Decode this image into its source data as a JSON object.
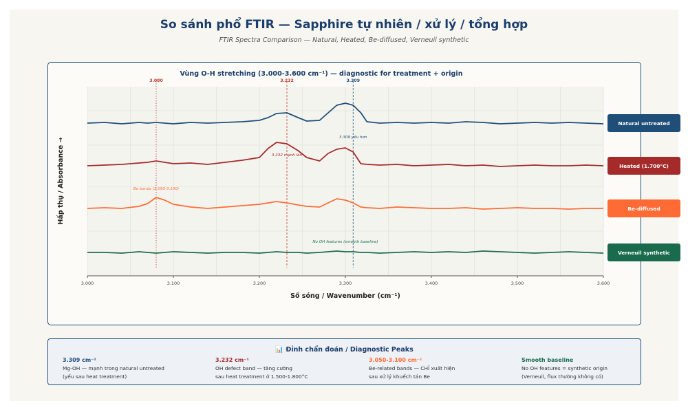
{
  "header": {
    "title": "So sánh phổ FTIR — Sapphire tự nhiên / xử lý / tổng hợp",
    "subtitle": "FTIR Spectra Comparison — Natural, Heated, Be-diffused, Verneuil synthetic"
  },
  "chart_data": {
    "type": "line",
    "title": "Vùng O-H stretching (3.000-3.600 cm⁻¹) — diagnostic for treatment + origin",
    "xlabel": "Số sóng / Wavenumber (cm⁻¹)",
    "ylabel": "Hấp thụ / Absorbance →",
    "xlim": [
      3000,
      3600
    ],
    "xticks": [
      3000,
      3100,
      3200,
      3300,
      3400,
      3500,
      3600
    ],
    "xtick_labels": [
      "3.000",
      "3.100",
      "3.200",
      "3.300",
      "3.400",
      "3.500",
      "3.600"
    ],
    "grid": true,
    "legend": "right",
    "reference_lines": [
      {
        "x": 3080,
        "label": "3.080",
        "color": "#c0392b",
        "style": "dotted"
      },
      {
        "x": 3232,
        "label": "3.232",
        "color": "#c0392b",
        "style": "dashed"
      },
      {
        "x": 3309,
        "label": "3.309",
        "color": "#1f4e79",
        "style": "dashed"
      }
    ],
    "x": [
      3000,
      3020,
      3040,
      3060,
      3070,
      3080,
      3090,
      3100,
      3120,
      3140,
      3160,
      3180,
      3200,
      3210,
      3220,
      3232,
      3245,
      3255,
      3270,
      3280,
      3290,
      3300,
      3309,
      3318,
      3325,
      3340,
      3360,
      3380,
      3400,
      3420,
      3440,
      3460,
      3480,
      3500,
      3520,
      3540,
      3560,
      3580,
      3600
    ],
    "series": [
      {
        "name": "Natural untreated",
        "color": "#1f4e79",
        "values": [
          0.0,
          0.01,
          -0.01,
          0.01,
          0.0,
          0.01,
          0.0,
          -0.01,
          0.01,
          0.0,
          0.01,
          0.02,
          0.04,
          0.08,
          0.14,
          0.15,
          0.08,
          0.03,
          0.04,
          0.15,
          0.26,
          0.29,
          0.26,
          0.15,
          0.02,
          0.0,
          0.01,
          0.0,
          0.01,
          0.0,
          0.02,
          0.01,
          -0.01,
          0.0,
          0.01,
          0.0,
          0.01,
          0.0,
          -0.01
        ]
      },
      {
        "name": "Heated (1.700°C)",
        "color": "#a52a2a",
        "values": [
          0.0,
          0.01,
          0.02,
          0.04,
          0.05,
          0.07,
          0.05,
          0.03,
          0.04,
          0.02,
          0.05,
          0.08,
          0.12,
          0.25,
          0.34,
          0.32,
          0.22,
          0.12,
          0.07,
          0.18,
          0.24,
          0.26,
          0.2,
          0.03,
          0.02,
          0.01,
          0.02,
          0.0,
          0.01,
          0.02,
          0.0,
          0.01,
          -0.01,
          0.0,
          0.01,
          0.0,
          0.0,
          0.01,
          0.0
        ]
      },
      {
        "name": "Be-diffused",
        "color": "#ff6b35",
        "values": [
          0.0,
          0.01,
          0.0,
          0.03,
          0.07,
          0.16,
          0.12,
          0.06,
          0.02,
          0.0,
          0.02,
          0.04,
          0.06,
          0.08,
          0.1,
          0.08,
          0.05,
          0.03,
          0.02,
          0.08,
          0.14,
          0.12,
          0.08,
          0.02,
          0.01,
          0.0,
          0.02,
          0.01,
          0.0,
          0.0,
          0.01,
          -0.01,
          0.0,
          0.01,
          0.0,
          0.0,
          -0.01,
          0.0,
          0.0
        ]
      },
      {
        "name": "Verneuil synthetic",
        "color": "#1a6b4e",
        "values": [
          0.0,
          0.0,
          -0.01,
          0.01,
          0.0,
          -0.01,
          0.0,
          0.01,
          0.0,
          -0.01,
          0.0,
          0.0,
          -0.01,
          0.0,
          0.01,
          0.0,
          0.0,
          -0.01,
          0.0,
          0.01,
          0.02,
          0.01,
          0.01,
          0.0,
          0.0,
          -0.01,
          0.0,
          0.01,
          0.0,
          0.01,
          0.0,
          0.02,
          0.01,
          0.0,
          -0.01,
          0.0,
          0.01,
          0.0,
          -0.01
        ]
      }
    ],
    "annotations": [
      {
        "series": 0,
        "x": 3309,
        "text": "3.309 yếu hơn"
      },
      {
        "series": 1,
        "x": 3232,
        "text": "3.232 mạnh lên"
      },
      {
        "series": 2,
        "x": 3080,
        "text": "Be bands (3.050-3.100)"
      },
      {
        "series": 3,
        "x": 3300,
        "text": "No OH features (smooth baseline)"
      }
    ]
  },
  "diagnostic": {
    "title": "📊 Đỉnh chẩn đoán / Diagnostic Peaks",
    "columns": [
      {
        "heading": "3.309 cm⁻¹",
        "color": "#1f4e79",
        "line1": "Mg-OH — mạnh trong natural untreated",
        "line2": "(yếu sau heat treatment)"
      },
      {
        "heading": "3.232 cm⁻¹",
        "color": "#a52a2a",
        "line1": "OH defect band — tăng cường",
        "line2": "sau heat treatment ở 1.500-1.800°C"
      },
      {
        "heading": "3.050-3.100 cm⁻¹",
        "color": "#ff6b35",
        "line1": "Be-related bands — CHỈ xuất hiện",
        "line2": "sau xử lý khuếch tán Be"
      },
      {
        "heading": "Smooth baseline",
        "color": "#1a6b4e",
        "line1": "No OH features = synthetic origin",
        "line2": "(Verneuil, flux thường không có)"
      }
    ]
  }
}
